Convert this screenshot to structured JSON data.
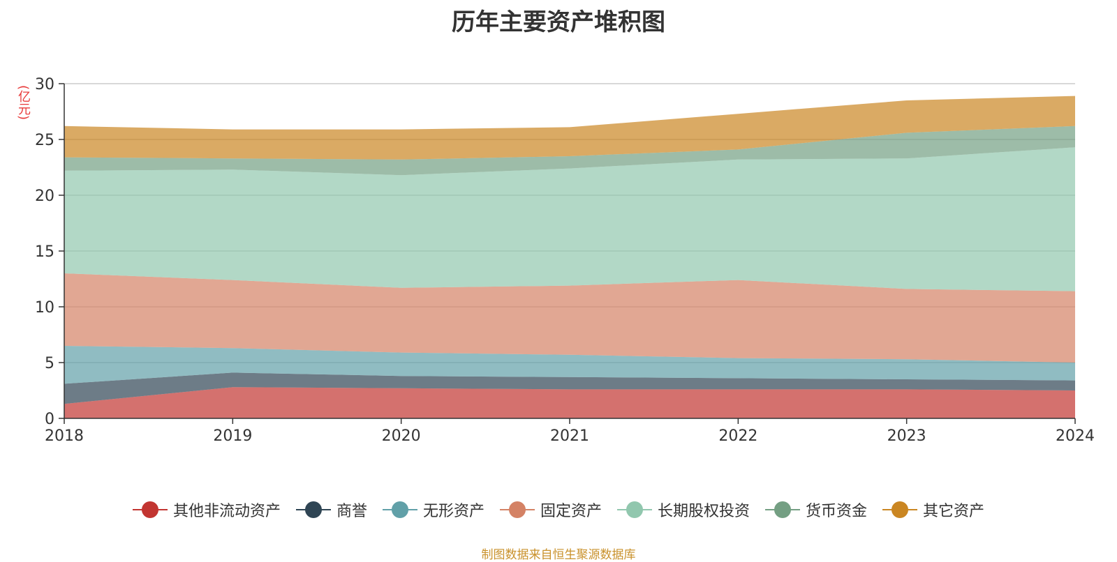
{
  "chart_data": {
    "type": "area",
    "stacked": true,
    "title": "历年主要资产堆积图",
    "ylabel": "(亿元)",
    "x": [
      "2018",
      "2019",
      "2020",
      "2021",
      "2022",
      "2023",
      "2024"
    ],
    "ylim": [
      0,
      30
    ],
    "yticks": [
      0,
      5,
      10,
      15,
      20,
      25,
      30
    ],
    "grid": true,
    "legend_position": "bottom",
    "series": [
      {
        "name": "其他非流动资产",
        "color": "#c23531",
        "values": [
          1.3,
          2.8,
          2.7,
          2.6,
          2.6,
          2.6,
          2.5
        ]
      },
      {
        "name": "商誉",
        "color": "#2f4554",
        "values": [
          1.8,
          1.3,
          1.1,
          1.1,
          1.0,
          0.9,
          0.9
        ]
      },
      {
        "name": "无形资产",
        "color": "#61a0a8",
        "values": [
          3.4,
          2.2,
          2.1,
          2.0,
          1.8,
          1.8,
          1.6
        ]
      },
      {
        "name": "固定资产",
        "color": "#d48265",
        "values": [
          6.5,
          6.1,
          5.8,
          6.2,
          7.0,
          6.3,
          6.4
        ]
      },
      {
        "name": "长期股权投资",
        "color": "#91c7ae",
        "values": [
          9.2,
          9.9,
          10.1,
          10.5,
          10.8,
          11.7,
          12.9
        ]
      },
      {
        "name": "货币资金",
        "color": "#749f83",
        "values": [
          1.2,
          1.0,
          1.4,
          1.1,
          0.9,
          2.3,
          1.9
        ]
      },
      {
        "name": "其它资产",
        "color": "#ca8622",
        "values": [
          2.8,
          2.6,
          2.7,
          2.6,
          3.2,
          2.9,
          2.7
        ]
      }
    ]
  },
  "source_note": "制图数据来自恒生聚源数据库"
}
